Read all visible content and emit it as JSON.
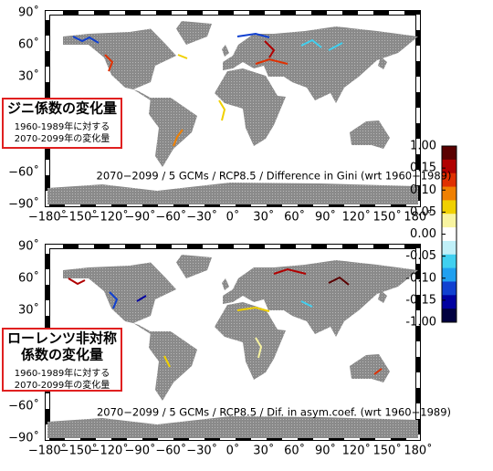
{
  "panels": [
    {
      "label_lines": [
        "ジニ係数の変化量"
      ],
      "sub_lines": [
        "1960-1989年に対する",
        "2070-2099年の変化量"
      ],
      "caption": "2070−2099 / 5 GCMs / RCP8.5 / Difference in Gini (wrt 1960−1989)",
      "lat_ticks": [
        {
          "value": 90,
          "label": "90˚"
        },
        {
          "value": 60,
          "label": "60˚"
        },
        {
          "value": 30,
          "label": "30˚"
        },
        {
          "value": -60,
          "label": "−60˚"
        },
        {
          "value": -90,
          "label": "−90˚"
        }
      ],
      "lon_ticks": [
        {
          "value": -180,
          "label": "−180˚"
        },
        {
          "value": -150,
          "label": "−150˚"
        },
        {
          "value": -120,
          "label": "−120˚"
        },
        {
          "value": -90,
          "label": "−90˚"
        },
        {
          "value": -60,
          "label": "−60˚"
        },
        {
          "value": -30,
          "label": "−30˚"
        },
        {
          "value": 0,
          "label": "0˚"
        },
        {
          "value": 30,
          "label": "30˚"
        },
        {
          "value": 60,
          "label": "60˚"
        },
        {
          "value": 90,
          "label": "90˚"
        },
        {
          "value": 120,
          "label": "120˚"
        },
        {
          "value": 150,
          "label": "150˚"
        },
        {
          "value": 180,
          "label": "180˚"
        }
      ]
    },
    {
      "label_lines": [
        "ローレンツ非対称",
        "係数の変化量"
      ],
      "sub_lines": [
        "1960-1989年に対する",
        "2070-2099年の変化量"
      ],
      "caption": "2070−2099 / 5 GCMs / RCP8.5 / Dif. in asym.coef. (wrt 1960−1989)",
      "lat_ticks": [
        {
          "value": 90,
          "label": "90˚"
        },
        {
          "value": 60,
          "label": "60˚"
        },
        {
          "value": 30,
          "label": "30˚"
        },
        {
          "value": -60,
          "label": "−60˚"
        },
        {
          "value": -90,
          "label": "−90˚"
        }
      ],
      "lon_ticks": [
        {
          "value": -180,
          "label": "−180˚"
        },
        {
          "value": -150,
          "label": "−150˚"
        },
        {
          "value": -120,
          "label": "−120˚"
        },
        {
          "value": -90,
          "label": "−90˚"
        },
        {
          "value": -60,
          "label": "−60˚"
        },
        {
          "value": -30,
          "label": "−30˚"
        },
        {
          "value": 0,
          "label": "0˚"
        },
        {
          "value": 30,
          "label": "30˚"
        },
        {
          "value": 60,
          "label": "60˚"
        },
        {
          "value": 90,
          "label": "90˚"
        },
        {
          "value": 120,
          "label": "120˚"
        },
        {
          "value": 150,
          "label": "150˚"
        },
        {
          "value": 180,
          "label": "180˚"
        }
      ]
    }
  ],
  "colorbar": {
    "ticks": [
      {
        "value": 1,
        "label": "1.00"
      },
      {
        "value": 0.15,
        "label": "0.15"
      },
      {
        "value": 0.1,
        "label": "0.10"
      },
      {
        "value": 0.05,
        "label": "0.05"
      },
      {
        "value": 0,
        "label": "0.00"
      },
      {
        "value": -0.05,
        "label": "-0.05"
      },
      {
        "value": -0.1,
        "label": "-0.10"
      },
      {
        "value": -0.15,
        "label": "-0.15"
      },
      {
        "value": -1,
        "label": "-1.00"
      }
    ],
    "colors": [
      "#5a0000",
      "#b00000",
      "#e03000",
      "#f08000",
      "#f0d000",
      "#f8f4a0",
      "#ffffff",
      "#c0f0f8",
      "#40d0f0",
      "#20a0f0",
      "#1040d0",
      "#0000a0",
      "#000040"
    ]
  }
}
